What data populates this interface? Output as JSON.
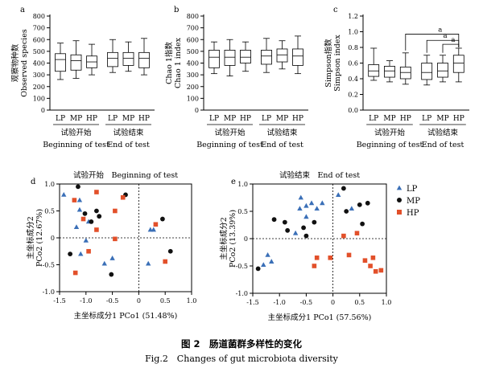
{
  "caption": {
    "cn": "图 2　肠道菌群多样性的变化",
    "en": "Fig.2　Changes of gut microbiota diversity"
  },
  "colors": {
    "LP": "#3a6fb7",
    "MP": "#111111",
    "HP": "#e2502a"
  },
  "chart_data": [
    {
      "panel": "a",
      "type": "box",
      "ylabel_cn": "观察物种数",
      "ylabel_en": "Observed species",
      "ylim": [
        0,
        800
      ],
      "yticks": [
        0,
        100,
        200,
        300,
        400,
        500,
        600,
        700,
        800
      ],
      "groups": [
        {
          "label_cn": "试验开始",
          "label_en": "Beginning of test",
          "boxes": [
            {
              "name": "LP",
              "min": 260,
              "q1": 330,
              "median": 430,
              "q3": 480,
              "max": 570
            },
            {
              "name": "MP",
              "min": 270,
              "q1": 340,
              "median": 420,
              "q3": 470,
              "max": 590
            },
            {
              "name": "HP",
              "min": 300,
              "q1": 360,
              "median": 410,
              "q3": 460,
              "max": 560
            }
          ]
        },
        {
          "label_cn": "试验结束",
          "label_en": "End of test",
          "boxes": [
            {
              "name": "LP",
              "min": 320,
              "q1": 370,
              "median": 440,
              "q3": 490,
              "max": 600
            },
            {
              "name": "MP",
              "min": 330,
              "q1": 380,
              "median": 440,
              "q3": 490,
              "max": 580
            },
            {
              "name": "HP",
              "min": 300,
              "q1": 360,
              "median": 440,
              "q3": 490,
              "max": 610
            }
          ]
        }
      ]
    },
    {
      "panel": "b",
      "type": "box",
      "ylabel_cn": "Chao 1指数",
      "ylabel_en": "Chao 1 index",
      "ylim": [
        0,
        800
      ],
      "yticks": [
        0,
        100,
        200,
        300,
        400,
        500,
        600,
        700,
        800
      ],
      "groups": [
        {
          "label_cn": "试验开始",
          "label_en": "Beginning of test",
          "boxes": [
            {
              "name": "LP",
              "min": 310,
              "q1": 360,
              "median": 450,
              "q3": 510,
              "max": 580
            },
            {
              "name": "MP",
              "min": 290,
              "q1": 380,
              "median": 450,
              "q3": 510,
              "max": 600
            },
            {
              "name": "HP",
              "min": 330,
              "q1": 400,
              "median": 450,
              "q3": 510,
              "max": 580
            }
          ]
        },
        {
          "label_cn": "试验结束",
          "label_en": "End of test",
          "boxes": [
            {
              "name": "LP",
              "min": 320,
              "q1": 390,
              "median": 460,
              "q3": 510,
              "max": 610
            },
            {
              "name": "MP",
              "min": 350,
              "q1": 410,
              "median": 470,
              "q3": 520,
              "max": 590
            },
            {
              "name": "HP",
              "min": 310,
              "q1": 380,
              "median": 460,
              "q3": 520,
              "max": 630
            }
          ]
        }
      ]
    },
    {
      "panel": "c",
      "type": "box",
      "ylabel_cn": "Simpson指数",
      "ylabel_en": "Simpson index",
      "ylim": [
        0,
        1.2
      ],
      "yticks": [
        0,
        0.2,
        0.4,
        0.6,
        0.8,
        1.0,
        1.2
      ],
      "significance": "a",
      "groups": [
        {
          "label_cn": "试验开始",
          "label_en": "Beginning of test",
          "boxes": [
            {
              "name": "LP",
              "min": 0.38,
              "q1": 0.43,
              "median": 0.5,
              "q3": 0.58,
              "max": 0.79
            },
            {
              "name": "MP",
              "min": 0.36,
              "q1": 0.42,
              "median": 0.5,
              "q3": 0.56,
              "max": 0.63
            },
            {
              "name": "HP",
              "min": 0.33,
              "q1": 0.4,
              "median": 0.48,
              "q3": 0.55,
              "max": 0.73
            }
          ]
        },
        {
          "label_cn": "试验结束",
          "label_en": "End of test",
          "boxes": [
            {
              "name": "LP",
              "min": 0.32,
              "q1": 0.39,
              "median": 0.48,
              "q3": 0.6,
              "max": 0.7
            },
            {
              "name": "MP",
              "min": 0.36,
              "q1": 0.42,
              "median": 0.5,
              "q3": 0.6,
              "max": 0.7
            },
            {
              "name": "HP",
              "min": 0.36,
              "q1": 0.48,
              "median": 0.6,
              "q3": 0.7,
              "max": 0.79
            }
          ]
        }
      ]
    },
    {
      "panel": "d",
      "type": "scatter",
      "title": "试验开始　Beginning of test",
      "xlabel": "主坐标成分1 PCo1 (51.48%)",
      "ylabel_cn": "主坐标成分2",
      "ylabel_en": "PCo2 (12.67%)",
      "xlim": [
        -1.5,
        1.0
      ],
      "ylim": [
        -1.0,
        1.0
      ],
      "xticks": [
        -1.5,
        -1.0,
        -0.5,
        0,
        0.5,
        1.0
      ],
      "yticks": [
        -1.0,
        -0.5,
        0,
        0.5,
        1.0
      ],
      "series": [
        {
          "name": "LP",
          "points": [
            [
              -1.42,
              0.8
            ],
            [
              -1.12,
              0.7
            ],
            [
              -1.12,
              0.52
            ],
            [
              -1.18,
              0.2
            ],
            [
              -0.95,
              0.3
            ],
            [
              -1.0,
              -0.05
            ],
            [
              -1.1,
              -0.3
            ],
            [
              -0.65,
              -0.48
            ],
            [
              -0.5,
              -0.38
            ],
            [
              0.28,
              0.15
            ],
            [
              0.22,
              0.15
            ],
            [
              0.18,
              -0.48
            ]
          ]
        },
        {
          "name": "MP",
          "points": [
            [
              -1.15,
              0.95
            ],
            [
              -0.8,
              0.5
            ],
            [
              -1.02,
              0.45
            ],
            [
              -0.9,
              0.3
            ],
            [
              -0.75,
              0.4
            ],
            [
              -1.3,
              -0.3
            ],
            [
              -0.52,
              -0.68
            ],
            [
              -0.25,
              0.8
            ],
            [
              0.45,
              0.35
            ],
            [
              0.6,
              -0.25
            ]
          ]
        },
        {
          "name": "HP",
          "points": [
            [
              -1.22,
              0.7
            ],
            [
              -0.8,
              0.85
            ],
            [
              -1.05,
              0.35
            ],
            [
              -0.95,
              -0.25
            ],
            [
              -0.8,
              0.15
            ],
            [
              -0.45,
              0.5
            ],
            [
              -0.3,
              0.75
            ],
            [
              -0.45,
              -0.02
            ],
            [
              -1.2,
              -0.65
            ],
            [
              0.32,
              0.25
            ],
            [
              0.5,
              -0.44
            ]
          ]
        }
      ]
    },
    {
      "panel": "e",
      "type": "scatter",
      "title": "试验结束　End of test",
      "xlabel": "主坐标成分1 PCo1 (57.56%)",
      "ylabel_cn": "主坐标成分2",
      "ylabel_en": "PCo2 (13.39%)",
      "xlim": [
        -1.5,
        1.0
      ],
      "ylim": [
        -1.0,
        1.0
      ],
      "xticks": [
        -1.5,
        -1.0,
        -0.5,
        0,
        0.5,
        1.0
      ],
      "yticks": [
        -1.0,
        -0.5,
        0,
        0.5,
        1.0
      ],
      "legend": [
        "LP",
        "MP",
        "HP"
      ],
      "series": [
        {
          "name": "LP",
          "points": [
            [
              -0.6,
              0.75
            ],
            [
              -0.4,
              0.65
            ],
            [
              -0.2,
              0.65
            ],
            [
              -0.5,
              0.6
            ],
            [
              -0.3,
              0.55
            ],
            [
              -0.5,
              0.4
            ],
            [
              -0.62,
              0.55
            ],
            [
              0.1,
              0.8
            ],
            [
              0.35,
              0.55
            ],
            [
              -1.22,
              -0.3
            ],
            [
              -1.15,
              -0.42
            ],
            [
              -1.3,
              -0.48
            ],
            [
              -0.7,
              0.1
            ]
          ]
        },
        {
          "name": "MP",
          "points": [
            [
              -1.1,
              0.35
            ],
            [
              -0.9,
              0.3
            ],
            [
              -0.85,
              0.15
            ],
            [
              -0.55,
              0.2
            ],
            [
              -0.35,
              0.3
            ],
            [
              -0.5,
              0.05
            ],
            [
              -1.4,
              -0.55
            ],
            [
              0.2,
              0.92
            ],
            [
              0.5,
              0.62
            ],
            [
              0.65,
              0.65
            ],
            [
              0.25,
              0.5
            ],
            [
              0.55,
              0.27
            ]
          ]
        },
        {
          "name": "HP",
          "points": [
            [
              -0.3,
              -0.35
            ],
            [
              -0.35,
              -0.5
            ],
            [
              -0.05,
              -0.35
            ],
            [
              0.2,
              0.05
            ],
            [
              0.45,
              0.1
            ],
            [
              0.6,
              -0.4
            ],
            [
              0.7,
              -0.5
            ],
            [
              0.8,
              -0.6
            ],
            [
              0.75,
              -0.35
            ],
            [
              0.9,
              -0.58
            ],
            [
              0.3,
              -0.3
            ]
          ]
        }
      ]
    }
  ]
}
